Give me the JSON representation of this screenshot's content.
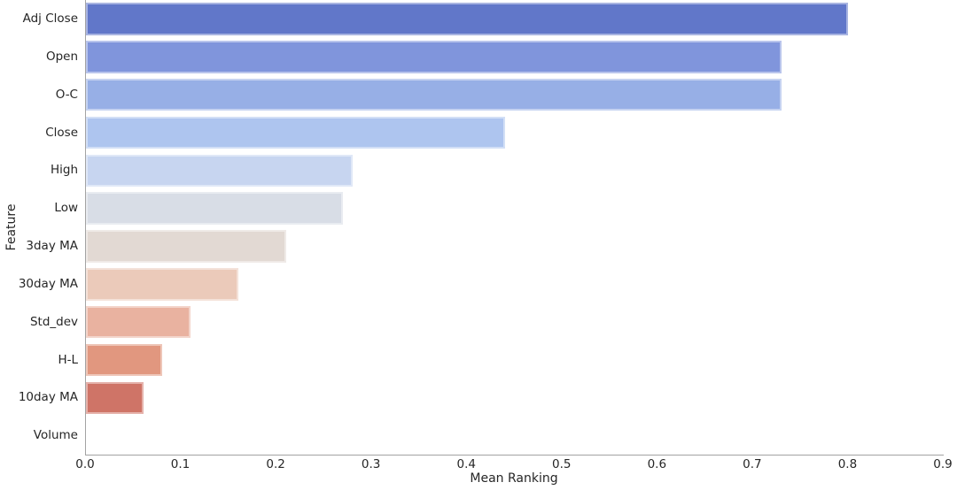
{
  "figure": {
    "background": "#ffffff",
    "axis_color": "#a3a3a3",
    "text_color": "#262626"
  },
  "chart_data": {
    "type": "bar",
    "orientation": "horizontal",
    "title": "",
    "xlabel": "Mean Ranking",
    "ylabel": "Feature",
    "categories": [
      "Adj Close",
      "Open",
      "O-C",
      "Close",
      "High",
      "Low",
      "3day MA",
      "30day MA",
      "Std_dev",
      "H-L",
      "10day MA",
      "Volume"
    ],
    "values": [
      0.8,
      0.73,
      0.73,
      0.44,
      0.28,
      0.27,
      0.21,
      0.16,
      0.11,
      0.08,
      0.06,
      0.0
    ],
    "bar_colors": [
      "#6177c9",
      "#8095dc",
      "#97afe6",
      "#aec5ef",
      "#c7d5f0",
      "#d8dde6",
      "#e2d9d3",
      "#ebcaba",
      "#e9b2a0",
      "#e1977f",
      "#cf7467",
      null
    ],
    "xlim": [
      0.0,
      0.9
    ],
    "xticks": [
      "0.0",
      "0.1",
      "0.2",
      "0.3",
      "0.4",
      "0.5",
      "0.6",
      "0.7",
      "0.8",
      "0.9"
    ],
    "grid": false,
    "legend": null,
    "palette": "coolwarm"
  }
}
